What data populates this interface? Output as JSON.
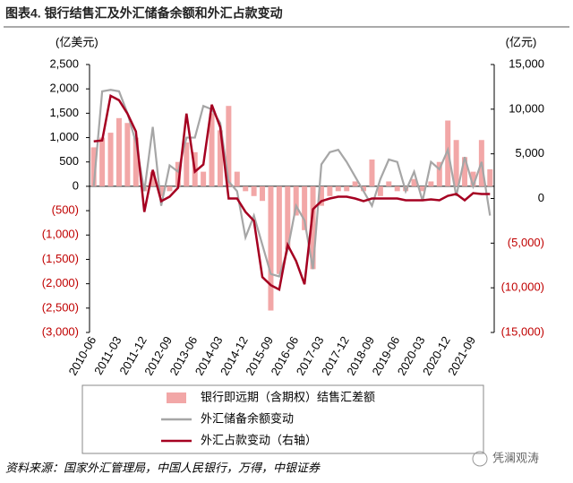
{
  "chart_data": {
    "type": "bar-line",
    "title": "图表4. 银行结售汇及外汇储备余额和外汇占款变动",
    "y_unit": "(亿美元)",
    "y2_unit": "(亿元)",
    "categories": [
      "2010-06",
      null,
      null,
      "2011-03",
      null,
      null,
      "2011-12",
      null,
      null,
      "2012-09",
      null,
      null,
      "2013-06",
      null,
      null,
      "2014-03",
      null,
      null,
      "2014-12",
      null,
      null,
      "2015-09",
      null,
      null,
      "2016-06",
      null,
      null,
      "2017-03",
      null,
      null,
      "2017-12",
      null,
      null,
      "2018-09",
      null,
      null,
      "2019-06",
      null,
      null,
      "2020-03",
      null,
      null,
      "2020-12",
      null,
      null,
      "2021-09",
      null,
      null
    ],
    "series": [
      {
        "name": "银行即远期（含期权）结售汇差额",
        "kind": "bar",
        "color": "#f2a7a7",
        "values": [
          800,
          1000,
          1100,
          1400,
          1300,
          1000,
          -100,
          300,
          -200,
          -100,
          500,
          900,
          700,
          300,
          1500,
          1150,
          1650,
          300,
          -100,
          -200,
          -300,
          -2550,
          -1800,
          -1300,
          -600,
          -900,
          -1700,
          -400,
          -200,
          -100,
          -100,
          100,
          -100,
          550,
          -200,
          100,
          -100,
          -100,
          150,
          -100,
          100,
          500,
          1350,
          950,
          600,
          300,
          950,
          350
        ]
      },
      {
        "name": "外汇储备余额变动",
        "kind": "line",
        "color": "#a6a6a6",
        "values": [
          0,
          1950,
          1980,
          1950,
          1500,
          900,
          -100,
          1220,
          -400,
          430,
          300,
          1000,
          1000,
          1650,
          1580,
          1300,
          100,
          -100,
          -1050,
          -600,
          -1200,
          -1800,
          -1850,
          -1300,
          -400,
          -700,
          -1700,
          450,
          700,
          750,
          500,
          200,
          -100,
          -400,
          150,
          550,
          500,
          -100,
          300,
          -300,
          500,
          350,
          750,
          -200,
          600,
          0,
          500,
          -600
        ]
      },
      {
        "name": "外汇占款变动（右轴）",
        "kind": "line",
        "axis": "y2",
        "color": "#a50021",
        "values": [
          6400,
          6500,
          11500,
          11000,
          9500,
          7500,
          -1500,
          3200,
          -300,
          200,
          1200,
          9500,
          3000,
          3800,
          10500,
          8000,
          0,
          0,
          -1500,
          -2500,
          -8800,
          -9700,
          -10200,
          -5200,
          -7000,
          -9600,
          -1200,
          -300,
          0,
          200,
          200,
          0,
          -300,
          0,
          0,
          0,
          0,
          -200,
          -200,
          -200,
          -100,
          -200,
          300,
          500,
          -200,
          600,
          500,
          500
        ]
      }
    ],
    "ylim": [
      -3000,
      2500
    ],
    "yticks": [
      {
        "value": -3000,
        "label": "(3,000)"
      },
      {
        "value": -2500,
        "label": "(2,500)"
      },
      {
        "value": -2000,
        "label": "(2,000)"
      },
      {
        "value": -1500,
        "label": "(1,500)"
      },
      {
        "value": -1000,
        "label": "(1,000)"
      },
      {
        "value": -500,
        "label": "(500)"
      },
      0,
      500,
      {
        "value": 1000,
        "label": "1,000"
      },
      {
        "value": 1500,
        "label": "1,500"
      },
      {
        "value": 2000,
        "label": "2,000"
      },
      {
        "value": 2500,
        "label": "2,500"
      }
    ],
    "y2lim": [
      -15000,
      15000
    ],
    "y2ticks": [
      {
        "value": -15000,
        "label": "(15,000)"
      },
      {
        "value": -10000,
        "label": "(10,000)"
      },
      {
        "value": -5000,
        "label": "(5,000)"
      },
      0,
      {
        "value": 5000,
        "label": "5,000"
      },
      {
        "value": 10000,
        "label": "10,000"
      },
      {
        "value": 15000,
        "label": "15,000"
      }
    ],
    "negative_label_color": "#c00000",
    "source": "资料来源：国家外汇管理局，中国人民银行，万得，中银证券",
    "watermark": "凭澜观涛"
  }
}
